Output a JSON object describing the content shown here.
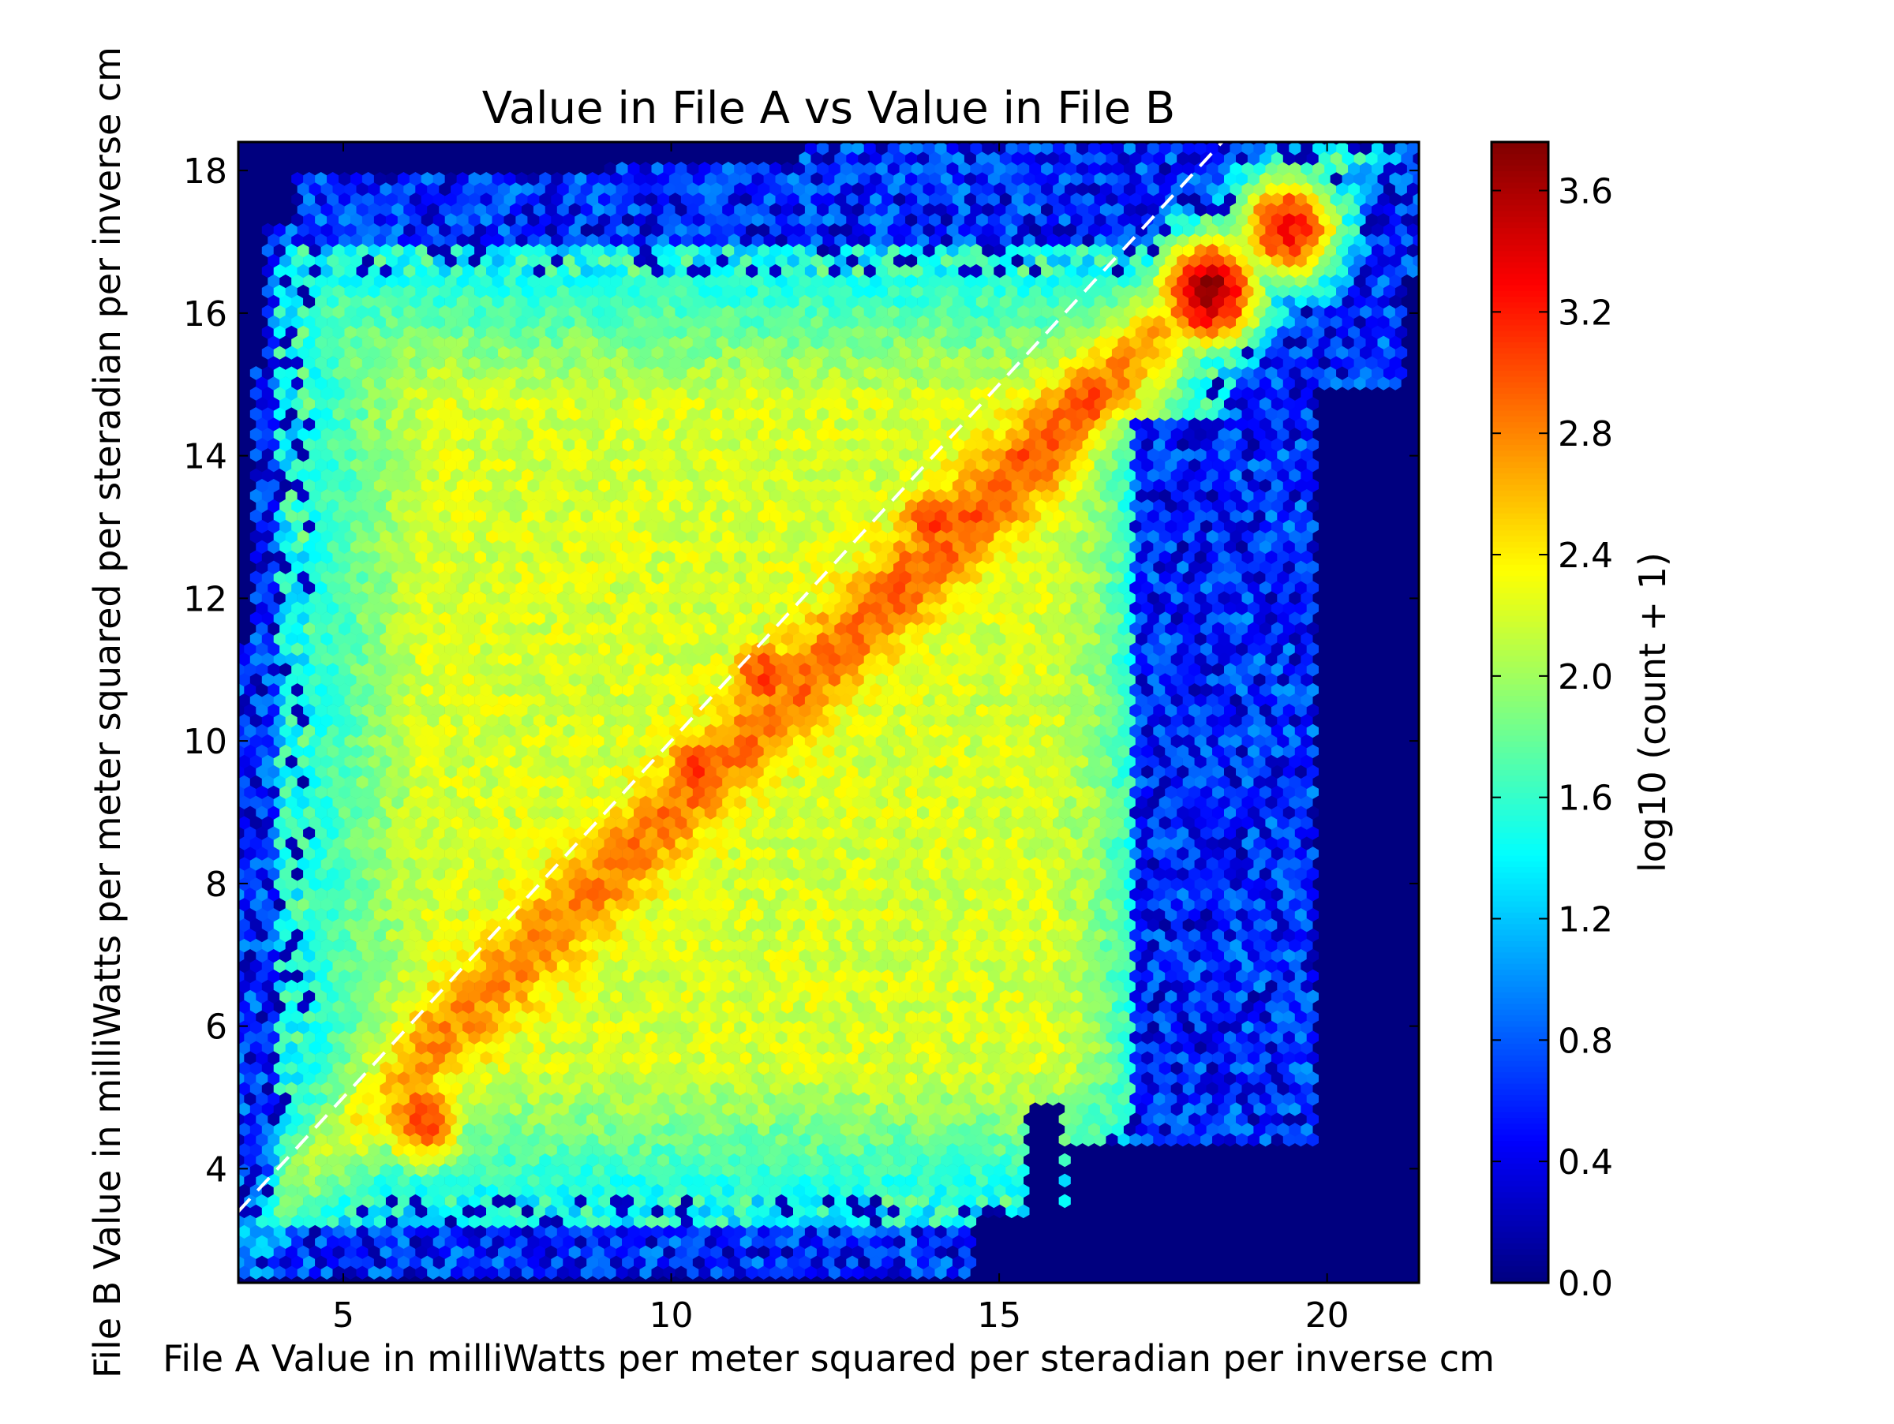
{
  "chart_data": {
    "type": "heatmap",
    "subtype": "hexbin",
    "title": "Value in File A vs Value in File B",
    "xlabel": "File A Value in milliWatts per meter squared per steradian per inverse cm",
    "ylabel": "File B Value in milliWatts per meter squared per steradian per inverse cm",
    "xlim": [
      3.4,
      21.4
    ],
    "ylim": [
      2.4,
      18.4
    ],
    "x_ticks": [
      5,
      10,
      15,
      20
    ],
    "x_tick_labels": [
      "5",
      "10",
      "15",
      "20"
    ],
    "y_ticks": [
      4,
      6,
      8,
      10,
      12,
      14,
      16,
      18
    ],
    "y_tick_labels": [
      "4",
      "6",
      "8",
      "10",
      "12",
      "14",
      "16",
      "18"
    ],
    "colorbar": {
      "label": "log10 (count + 1)",
      "colormap": "jet",
      "range": [
        0.0,
        3.76
      ],
      "ticks": [
        0.0,
        0.4,
        0.8,
        1.2,
        1.6,
        2.0,
        2.4,
        2.8,
        3.2,
        3.6
      ],
      "tick_labels": [
        "0.0",
        "0.4",
        "0.8",
        "1.2",
        "1.6",
        "2.0",
        "2.4",
        "2.8",
        "3.2",
        "3.6"
      ]
    },
    "reference_line": {
      "type": "identity",
      "from": [
        3.4,
        3.4
      ],
      "to": [
        21.4,
        21.4
      ],
      "style": "dashed",
      "color": "#ffffff"
    },
    "background_color": "#00007f",
    "density_peaks": [
      {
        "x": 6.2,
        "y": 4.7,
        "value": 3.05
      },
      {
        "x": 10.4,
        "y": 9.6,
        "value": 3.05
      },
      {
        "x": 11.4,
        "y": 10.9,
        "value": 3.05
      },
      {
        "x": 14.0,
        "y": 13.1,
        "value": 3.05
      },
      {
        "x": 18.2,
        "y": 16.3,
        "value": 3.7
      },
      {
        "x": 19.4,
        "y": 17.2,
        "value": 3.3
      }
    ]
  }
}
